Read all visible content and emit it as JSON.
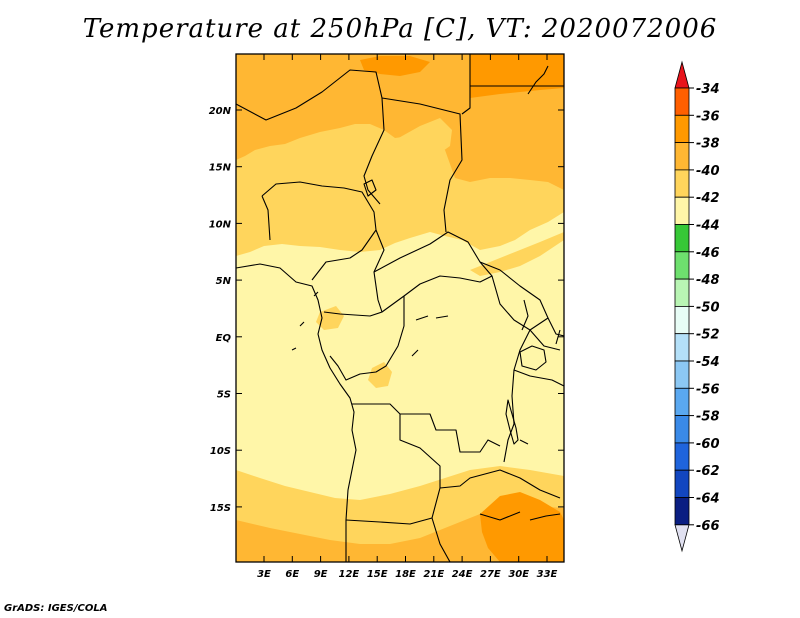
{
  "title": "Temperature at 250hPa [C], VT: 2020072006",
  "credit": "GrADS: IGES/COLA",
  "map": {
    "lat_labels": [
      "20N",
      "15N",
      "10N",
      "5N",
      "EQ",
      "5S",
      "10S",
      "15S"
    ],
    "lon_labels": [
      "3E",
      "6E",
      "9E",
      "12E",
      "15E",
      "18E",
      "21E",
      "24E",
      "27E",
      "30E",
      "33E"
    ],
    "field_colors": {
      "t34": "#ff6600",
      "t36": "#ff9900",
      "t38": "#ffb733",
      "t40": "#ffd55c",
      "t42": "#fff6a8",
      "t44": "#28c228"
    }
  },
  "colorbar": {
    "levels": [
      "-34",
      "-36",
      "-38",
      "-40",
      "-42",
      "-44",
      "-46",
      "-48",
      "-50",
      "-52",
      "-54",
      "-56",
      "-58",
      "-60",
      "-62",
      "-64",
      "-66"
    ],
    "colors": [
      "#e8141c",
      "#ff5f00",
      "#ff9900",
      "#ffb733",
      "#ffd55c",
      "#fff6a8",
      "#37c837",
      "#6ee06e",
      "#b9f5b4",
      "#e8fdf6",
      "#b4e0f8",
      "#8cc8f4",
      "#5aa8f0",
      "#3a8ae8",
      "#1f64dc",
      "#1246c0",
      "#0a1e82",
      "#e0e0f0"
    ]
  }
}
